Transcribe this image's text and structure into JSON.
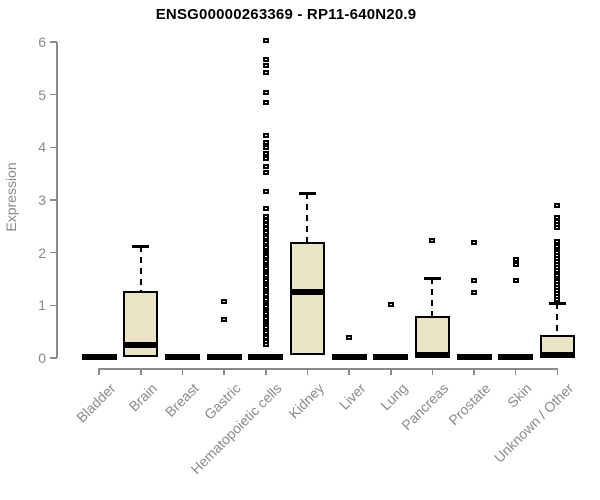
{
  "chart_data": {
    "type": "boxplot",
    "title": "ENSG00000263369 - RP11-640N20.9",
    "ylabel": "Expression",
    "xlabel": "",
    "ylim": [
      0,
      6
    ],
    "yticks": [
      0,
      1,
      2,
      3,
      4,
      5,
      6
    ],
    "grid": false,
    "legend": false,
    "colors": {
      "box_fill": "#eae4c7",
      "box_stroke": "#000000",
      "axis": "#8a8a8a",
      "title": "#000000",
      "background": "#ffffff"
    },
    "categories": [
      "Bladder",
      "Brain",
      "Breast",
      "Gastric",
      "Hematopoietic cells",
      "Kidney",
      "Liver",
      "Lung",
      "Pancreas",
      "Prostate",
      "Skin",
      "Unknown / Other"
    ],
    "series": [
      {
        "name": "Bladder",
        "q1": 0,
        "median": 0.02,
        "q3": 0.05,
        "whisker_low": 0,
        "whisker_high": 0.05,
        "outliers": []
      },
      {
        "name": "Brain",
        "q1": 0.02,
        "median": 0.24,
        "q3": 1.27,
        "whisker_low": 0.02,
        "whisker_high": 2.12,
        "outliers": []
      },
      {
        "name": "Breast",
        "q1": 0,
        "median": 0.02,
        "q3": 0.05,
        "whisker_low": 0,
        "whisker_high": 0.05,
        "outliers": []
      },
      {
        "name": "Gastric",
        "q1": 0,
        "median": 0.02,
        "q3": 0.05,
        "whisker_low": 0,
        "whisker_high": 0.05,
        "outliers": [
          0.74,
          1.08
        ]
      },
      {
        "name": "Hematopoietic cells",
        "q1": 0,
        "median": 0.02,
        "q3": 0.05,
        "whisker_low": 0,
        "whisker_high": 0.05,
        "outliers": [
          6.02,
          5.66,
          5.55,
          5.42,
          5.05,
          4.86,
          4.22,
          4.1,
          3.99,
          3.89,
          3.79,
          3.63,
          3.52,
          3.16,
          2.84,
          2.69,
          2.61,
          2.53,
          2.46,
          2.38,
          2.32,
          2.28,
          2.23,
          2.19,
          2.14,
          2.1,
          2.05,
          2.01,
          1.96,
          1.92,
          1.87,
          1.83,
          1.78,
          1.74,
          1.69,
          1.65,
          1.6,
          1.56,
          1.51,
          1.47,
          1.42,
          1.38,
          1.33,
          1.29,
          1.24,
          1.2,
          1.15,
          1.11,
          1.06,
          1.02,
          0.97,
          0.93,
          0.88,
          0.84,
          0.79,
          0.75,
          0.7,
          0.66,
          0.61,
          0.57,
          0.52,
          0.48,
          0.43,
          0.39,
          0.34,
          0.31,
          0.25
        ]
      },
      {
        "name": "Kidney",
        "q1": 0.05,
        "median": 1.26,
        "q3": 2.21,
        "whisker_low": 0.05,
        "whisker_high": 3.13,
        "outliers": []
      },
      {
        "name": "Liver",
        "q1": 0,
        "median": 0.02,
        "q3": 0.05,
        "whisker_low": 0,
        "whisker_high": 0.05,
        "outliers": [
          0.38
        ]
      },
      {
        "name": "Lung",
        "q1": 0,
        "median": 0.02,
        "q3": 0.05,
        "whisker_low": 0,
        "whisker_high": 0.05,
        "outliers": [
          1.01
        ]
      },
      {
        "name": "Pancreas",
        "q1": 0.02,
        "median": 0.05,
        "q3": 0.79,
        "whisker_low": 0.02,
        "whisker_high": 1.51,
        "outliers": [
          2.24
        ]
      },
      {
        "name": "Prostate",
        "q1": 0,
        "median": 0.02,
        "q3": 0.05,
        "whisker_low": 0,
        "whisker_high": 0.05,
        "outliers": [
          1.24,
          1.47,
          2.19
        ]
      },
      {
        "name": "Skin",
        "q1": 0,
        "median": 0.02,
        "q3": 0.05,
        "whisker_low": 0,
        "whisker_high": 0.05,
        "outliers": [
          1.47,
          1.78,
          1.87
        ]
      },
      {
        "name": "Unknown / Other",
        "q1": 0.01,
        "median": 0.05,
        "q3": 0.43,
        "whisker_low": 0.01,
        "whisker_high": 1.04,
        "outliers": [
          2.89,
          2.67,
          2.6,
          2.53,
          2.48,
          2.22,
          2.16,
          2.11,
          2.05,
          2.0,
          1.94,
          1.89,
          1.83,
          1.78,
          1.72,
          1.67,
          1.61,
          1.56,
          1.5,
          1.45,
          1.39,
          1.34,
          1.28,
          1.23,
          1.17,
          1.12
        ]
      }
    ]
  }
}
